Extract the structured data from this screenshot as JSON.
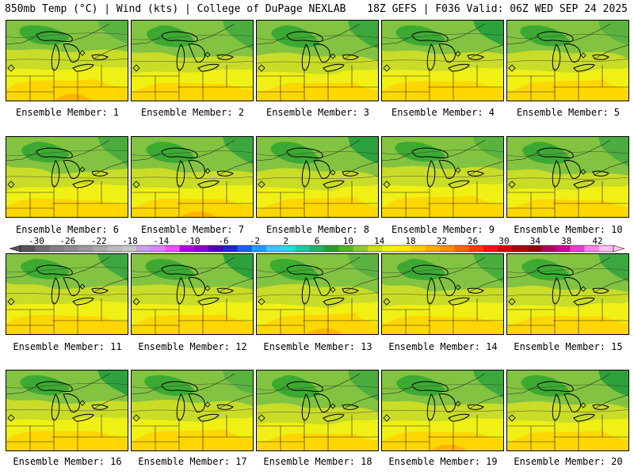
{
  "header": {
    "left": "850mb Temp (°C) | Wind (kts) | College of DuPage NEXLAB",
    "right": "18Z GEFS | F036 Valid: 06Z WED SEP 24 2025"
  },
  "members": [
    {
      "label": "Ensemble Member: 1"
    },
    {
      "label": "Ensemble Member: 2"
    },
    {
      "label": "Ensemble Member: 3"
    },
    {
      "label": "Ensemble Member: 4"
    },
    {
      "label": "Ensemble Member: 5"
    },
    {
      "label": "Ensemble Member: 6"
    },
    {
      "label": "Ensemble Member: 7"
    },
    {
      "label": "Ensemble Member: 8"
    },
    {
      "label": "Ensemble Member: 9"
    },
    {
      "label": "Ensemble Member: 10"
    },
    {
      "label": "Ensemble Member: 11"
    },
    {
      "label": "Ensemble Member: 12"
    },
    {
      "label": "Ensemble Member: 13"
    },
    {
      "label": "Ensemble Member: 14"
    },
    {
      "label": "Ensemble Member: 15"
    },
    {
      "label": "Ensemble Member: 16"
    },
    {
      "label": "Ensemble Member: 17"
    },
    {
      "label": "Ensemble Member: 18"
    },
    {
      "label": "Ensemble Member: 19"
    },
    {
      "label": "Ensemble Member: 20"
    }
  ],
  "colorbar": {
    "labels": [
      "-30",
      "-26",
      "-22",
      "-18",
      "-14",
      "-10",
      "-6",
      "-2",
      "2",
      "6",
      "10",
      "14",
      "18",
      "22",
      "26",
      "30",
      "34",
      "38",
      "42"
    ],
    "colors": [
      "#555555",
      "#6e6e6e",
      "#808080",
      "#8c8c8c",
      "#9a9a9a",
      "#aaaaaa",
      "#bbbbbb",
      "#c8c8c8",
      "#c8a0e6",
      "#dc82f0",
      "#f050f0",
      "#b400dc",
      "#8c00c8",
      "#5000b4",
      "#1e28c8",
      "#1464f0",
      "#1ea0ff",
      "#3cc8ff",
      "#28dcdc",
      "#1ec8a0",
      "#1eb464",
      "#28a028",
      "#50b428",
      "#8cc832",
      "#c8dc28",
      "#f0f014",
      "#ffe600",
      "#ffc800",
      "#ffaa00",
      "#ff8c00",
      "#ff6400",
      "#ff3c00",
      "#f01414",
      "#d20000",
      "#b40000",
      "#960000",
      "#b4005a",
      "#d2008c",
      "#f03cc8",
      "#ff82e6",
      "#ffbef0"
    ]
  },
  "map_colors": {
    "deep_green": "#1e9b3c",
    "green": "#3caa32",
    "light_green": "#82c341",
    "yellow_green": "#c8dc28",
    "yellow": "#f0f014",
    "gold": "#ffd700",
    "orange": "#ffb400"
  }
}
